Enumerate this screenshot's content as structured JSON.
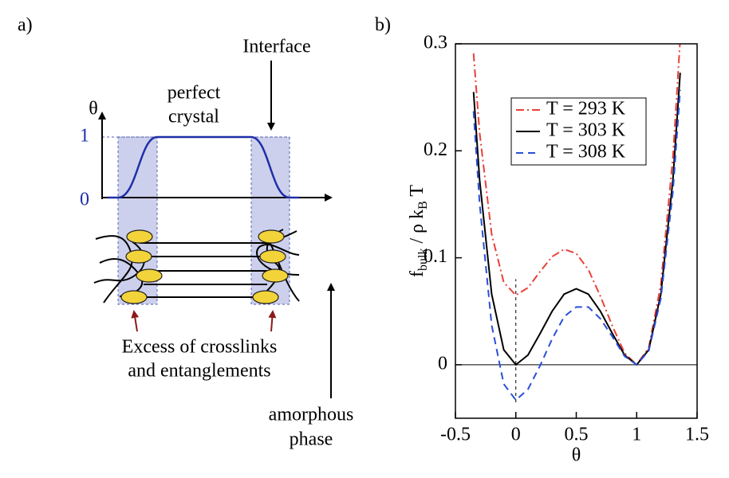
{
  "diagram": {
    "panel_label": "a)",
    "interface_label": "Interface",
    "crystal_label": [
      "perfect",
      "crystal"
    ],
    "axis_label": "θ",
    "level_labels": [
      "1",
      "0"
    ],
    "excess_label": [
      "Excess of crosslinks",
      "and entanglements"
    ],
    "amorphous_label": [
      "amorphous",
      "phase"
    ]
  },
  "chart_data": {
    "type": "line",
    "panel_label": "b)",
    "xlabel": "θ",
    "ylabel_parts": [
      "f",
      "bulk",
      " / ρ  k",
      "B",
      " T"
    ],
    "x": [
      -0.35,
      -0.3,
      -0.2,
      -0.1,
      0,
      0.1,
      0.2,
      0.3,
      0.4,
      0.5,
      0.6,
      0.7,
      0.8,
      0.9,
      1,
      1.1,
      1.2,
      1.3,
      1.36
    ],
    "series": [
      {
        "name": "T = 293 K",
        "color": "#e8413a",
        "dash": "dashdot",
        "values": [
          0.291,
          0.217,
          0.122,
          0.077,
          0.065,
          0.072,
          0.087,
          0.101,
          0.108,
          0.104,
          0.089,
          0.064,
          0.036,
          0.011,
          0,
          0.016,
          0.075,
          0.194,
          0.304
        ]
      },
      {
        "name": "T = 303 K",
        "color": "#000000",
        "dash": "solid",
        "values": [
          0.255,
          0.173,
          0.066,
          0.014,
          0,
          0.009,
          0.029,
          0.05,
          0.066,
          0.071,
          0.066,
          0.05,
          0.029,
          0.009,
          0,
          0.014,
          0.066,
          0.173,
          0.273
        ]
      },
      {
        "name": "T = 308 K",
        "color": "#2a4fd8",
        "dash": "dashed",
        "values": [
          0.237,
          0.151,
          0.037,
          -0.018,
          -0.033,
          -0.023,
          -0.001,
          0.024,
          0.045,
          0.054,
          0.054,
          0.043,
          0.026,
          0.008,
          0,
          0.013,
          0.062,
          0.162,
          0.257
        ]
      }
    ],
    "xlim": [
      -0.5,
      1.5
    ],
    "xticks": [
      -0.5,
      0,
      0.5,
      1,
      1.5
    ],
    "ylim": [
      -0.05,
      0.3
    ],
    "yticks": [
      0,
      0.1,
      0.2,
      0.3
    ],
    "reference_line_y": 0,
    "reference_line_x": 0,
    "legend": "top"
  }
}
